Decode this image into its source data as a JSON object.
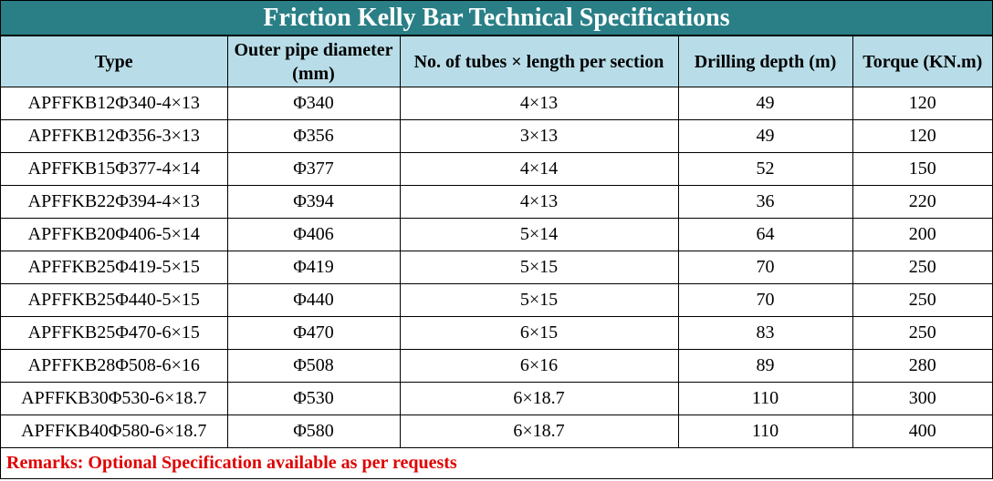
{
  "title": "Friction Kelly Bar Technical Specifications",
  "table": {
    "headers": [
      "Type",
      "Outer pipe diameter (mm)",
      "No. of tubes × length per section",
      "Drilling depth (m)",
      "Torque (KN.m)"
    ],
    "rows": [
      [
        "APFFKB12Φ340-4×13",
        "Φ340",
        "4×13",
        49,
        120
      ],
      [
        "APFFKB12Φ356-3×13",
        "Φ356",
        "3×13",
        49,
        120
      ],
      [
        "APFFKB15Φ377-4×14",
        "Φ377",
        "4×14",
        52,
        150
      ],
      [
        "APFFKB22Φ394-4×13",
        "Φ394",
        "4×13",
        36,
        220
      ],
      [
        "APFFKB20Φ406-5×14",
        "Φ406",
        "5×14",
        64,
        200
      ],
      [
        "APFFKB25Φ419-5×15",
        "Φ419",
        "5×15",
        70,
        250
      ],
      [
        "APFFKB25Φ440-5×15",
        "Φ440",
        "5×15",
        70,
        250
      ],
      [
        "APFFKB25Φ470-6×15",
        "Φ470",
        "6×15",
        83,
        250
      ],
      [
        "APFFKB28Φ508-6×16",
        "Φ508",
        "6×16",
        89,
        280
      ],
      [
        "APFFKB30Φ530-6×18.7",
        "Φ530",
        "6×18.7",
        110,
        300
      ],
      [
        "APFFKB40Φ580-6×18.7",
        "Φ580",
        "6×18.7",
        110,
        400
      ]
    ]
  },
  "remarks": "Remarks: Optional Specification available as per requests"
}
